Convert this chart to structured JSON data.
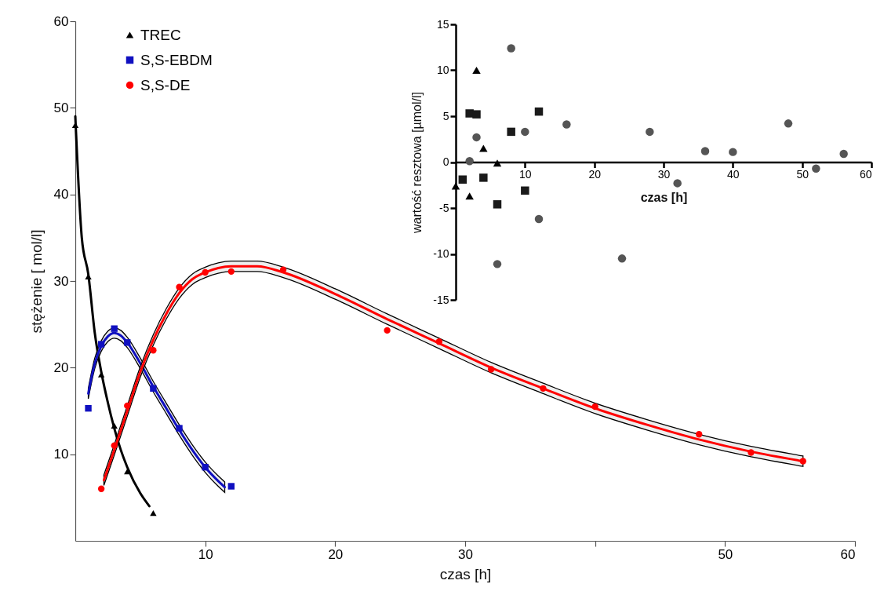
{
  "chart_data": [
    {
      "type": "line",
      "xlabel": "czas [h]",
      "ylabel": "stężenie [ mol/l]",
      "xlim": [
        0,
        60
      ],
      "ylim": [
        0,
        60
      ],
      "xticks": [
        10,
        20,
        30,
        {
          "value": 40,
          "label": null
        },
        50,
        60
      ],
      "yticks": [
        10,
        20,
        30,
        40,
        50,
        60
      ],
      "grid": false,
      "legend": "top left",
      "series": [
        {
          "color": "#000000",
          "marker": "none",
          "x": [
            0,
            0.5,
            1,
            1.5,
            2,
            2.5,
            3,
            3.5,
            4,
            5,
            5.7
          ],
          "values": [
            49,
            35,
            30.8,
            24,
            19.5,
            16,
            13,
            10.5,
            8.5,
            5.5,
            4
          ]
        },
        {
          "color": "#1010c0",
          "marker": "none",
          "x": [
            1,
            1.5,
            2,
            2.5,
            3,
            3.5,
            4,
            5,
            6,
            7,
            8,
            9,
            10,
            11,
            11.5
          ],
          "values": [
            17,
            20.5,
            22.5,
            23.6,
            24,
            23.7,
            22.9,
            20.5,
            17.8,
            15.3,
            12.8,
            10.5,
            8.5,
            6.9,
            6.2
          ],
          "lower": [
            16.4,
            19.9,
            21.9,
            23,
            23.4,
            23.1,
            22.3,
            19.9,
            17.2,
            14.7,
            12.2,
            9.9,
            7.9,
            6.3,
            5.6
          ],
          "upper": [
            17.6,
            21.1,
            23.1,
            24.2,
            24.6,
            24.3,
            23.5,
            21.1,
            18.4,
            15.9,
            13.4,
            11.1,
            9.1,
            7.5,
            6.8
          ]
        },
        {
          "color": "#ff0000",
          "marker": "none",
          "x": [
            2.2,
            3,
            4,
            5,
            6,
            7,
            8,
            9,
            10,
            11,
            12,
            14,
            16,
            20,
            24,
            28,
            32,
            36,
            40,
            44,
            48,
            52,
            56
          ],
          "values": [
            7,
            10.5,
            15,
            19.5,
            23.2,
            26.2,
            28.6,
            30.2,
            31,
            31.5,
            31.7,
            31.7,
            31,
            28.5,
            25.6,
            22.8,
            20,
            17.6,
            15.3,
            13.4,
            11.7,
            10.3,
            9.2
          ],
          "lower": [
            6.4,
            9.9,
            14.4,
            18.9,
            22.6,
            25.6,
            28,
            29.6,
            30.4,
            30.9,
            31.1,
            31.1,
            30.4,
            27.9,
            25,
            22.2,
            19.4,
            17,
            14.7,
            12.8,
            11.1,
            9.7,
            8.6
          ],
          "upper": [
            7.6,
            11.1,
            15.6,
            20.1,
            23.8,
            26.8,
            29.2,
            30.8,
            31.6,
            32.1,
            32.3,
            32.3,
            31.6,
            29.1,
            26.2,
            23.4,
            20.6,
            18.2,
            15.9,
            14,
            12.3,
            10.9,
            9.8
          ]
        },
        {
          "type": "scatter",
          "name": "TREC",
          "color": "#000000",
          "marker": "triangle",
          "x": [
            0,
            1,
            2,
            3,
            4,
            6
          ],
          "values": [
            48,
            30.5,
            19.2,
            13.3,
            8,
            3.2
          ]
        },
        {
          "type": "scatter",
          "name": "S,S-EBDM",
          "color": "#1010c0",
          "marker": "square",
          "x": [
            1,
            2,
            3,
            4,
            6,
            8,
            10,
            12
          ],
          "values": [
            15.3,
            22.7,
            24.5,
            22.9,
            17.6,
            13,
            8.5,
            6.3
          ]
        },
        {
          "type": "scatter",
          "name": "S,S-DE",
          "color": "#ff0000",
          "marker": "circle",
          "x": [
            2,
            3,
            4,
            6,
            8,
            10,
            12,
            16,
            24,
            28,
            32,
            36,
            40,
            48,
            52,
            56
          ],
          "values": [
            6,
            11,
            15.6,
            22,
            29.3,
            31,
            31.1,
            31.3,
            24.3,
            23,
            19.8,
            17.6,
            15.5,
            12.3,
            10.2,
            9.2
          ]
        }
      ]
    },
    {
      "type": "scatter",
      "xlabel": "czas [h]",
      "ylabel": "wartość resztowa [µmol/l]",
      "xlim": [
        0,
        60
      ],
      "ylim": [
        -15,
        15
      ],
      "xticks": [
        10,
        20,
        30,
        40,
        50,
        60
      ],
      "yticks": [
        -15,
        -10,
        -5,
        0,
        5,
        10,
        15
      ],
      "grid": false,
      "series": [
        {
          "color": "#555555",
          "marker": "circle",
          "x": [
            2,
            3,
            4,
            6,
            8,
            10,
            12,
            16,
            24,
            28,
            32,
            36,
            40,
            48,
            52,
            56
          ],
          "values": [
            0.1,
            2.7,
            null,
            -11.1,
            12.4,
            3.3,
            -6.2,
            4.1,
            -10.5,
            3.3,
            -2.3,
            1.2,
            1.1,
            4.2,
            -0.7,
            0.9
          ]
        },
        {
          "color": "#1a1a1a",
          "marker": "square",
          "x": [
            1,
            2,
            3,
            4,
            6,
            8,
            10,
            12
          ],
          "values": [
            -1.9,
            5.3,
            5.2,
            -1.7,
            -4.6,
            3.3,
            -3.1,
            5.5
          ]
        },
        {
          "color": "#000000",
          "marker": "triangle",
          "x": [
            0,
            2,
            3,
            4,
            6
          ],
          "values": [
            -2.6,
            -3.7,
            10,
            1.5,
            -0.1
          ]
        }
      ]
    }
  ]
}
